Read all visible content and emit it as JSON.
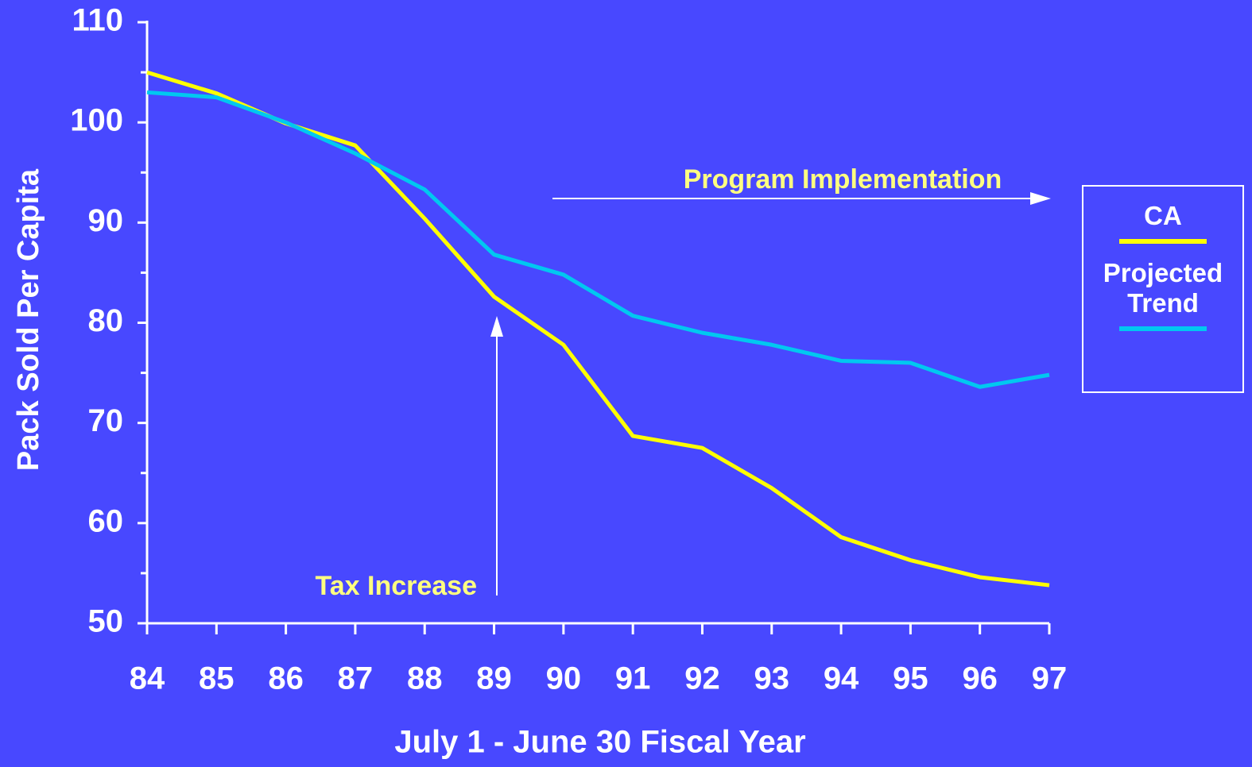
{
  "chart_data": {
    "type": "line",
    "x_label": "July 1 - June 30 Fiscal Year",
    "y_label": "Pack Sold Per Capita",
    "categories": [
      "84",
      "85",
      "86",
      "87",
      "88",
      "89",
      "90",
      "91",
      "92",
      "93",
      "94",
      "95",
      "96",
      "97"
    ],
    "series": [
      {
        "name": "CA",
        "color": "#ffff00",
        "values": [
          105,
          102.9,
          99.9,
          97.7,
          90.4,
          82.6,
          77.8,
          68.7,
          67.5,
          63.5,
          58.6,
          56.3,
          54.6,
          53.8
        ]
      },
      {
        "name": "Projected Trend",
        "color": "#00c8f0",
        "values": [
          103,
          102.5,
          100,
          96.9,
          93.3,
          86.8,
          84.8,
          80.7,
          79,
          77.8,
          76.2,
          76,
          73.6,
          74.8
        ]
      }
    ],
    "ylim": [
      50,
      110
    ],
    "yticks": [
      50,
      60,
      70,
      80,
      90,
      100,
      110
    ],
    "annotations": [
      {
        "text": "Program Implementation"
      },
      {
        "text": "Tax Increase"
      }
    ],
    "legend": "right"
  }
}
